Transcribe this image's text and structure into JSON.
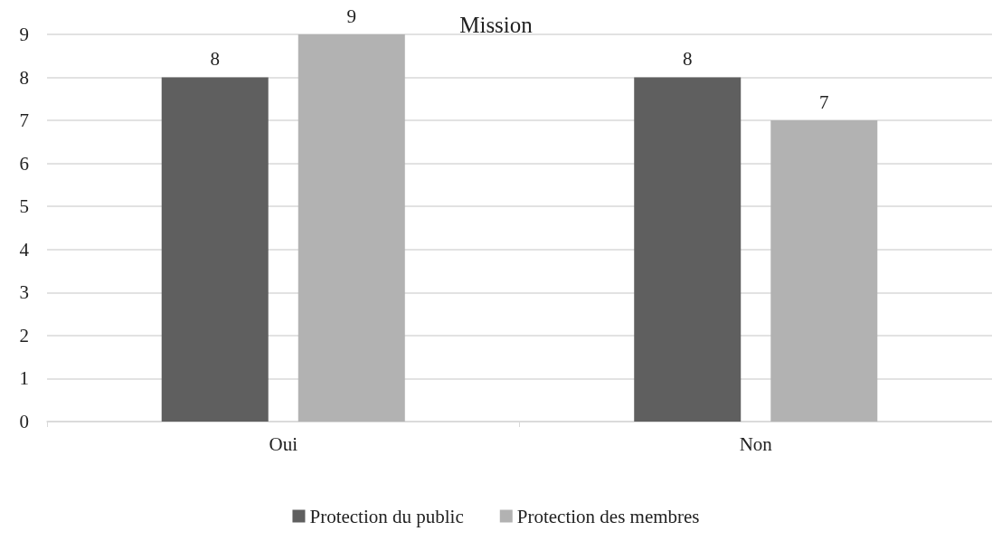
{
  "chart_data": {
    "type": "bar",
    "title": "Mission",
    "categories": [
      "Oui",
      "Non"
    ],
    "series": [
      {
        "name": "Protection du public",
        "color": "#5f5f5f",
        "values": [
          8,
          8
        ]
      },
      {
        "name": "Protection des membres",
        "color": "#b2b2b2",
        "values": [
          9,
          7
        ]
      }
    ],
    "ylim": [
      0,
      9
    ],
    "yticks": [
      0,
      1,
      2,
      3,
      4,
      5,
      6,
      7,
      8,
      9
    ],
    "grid": "y",
    "legend": "bottom",
    "data_labels": true
  }
}
